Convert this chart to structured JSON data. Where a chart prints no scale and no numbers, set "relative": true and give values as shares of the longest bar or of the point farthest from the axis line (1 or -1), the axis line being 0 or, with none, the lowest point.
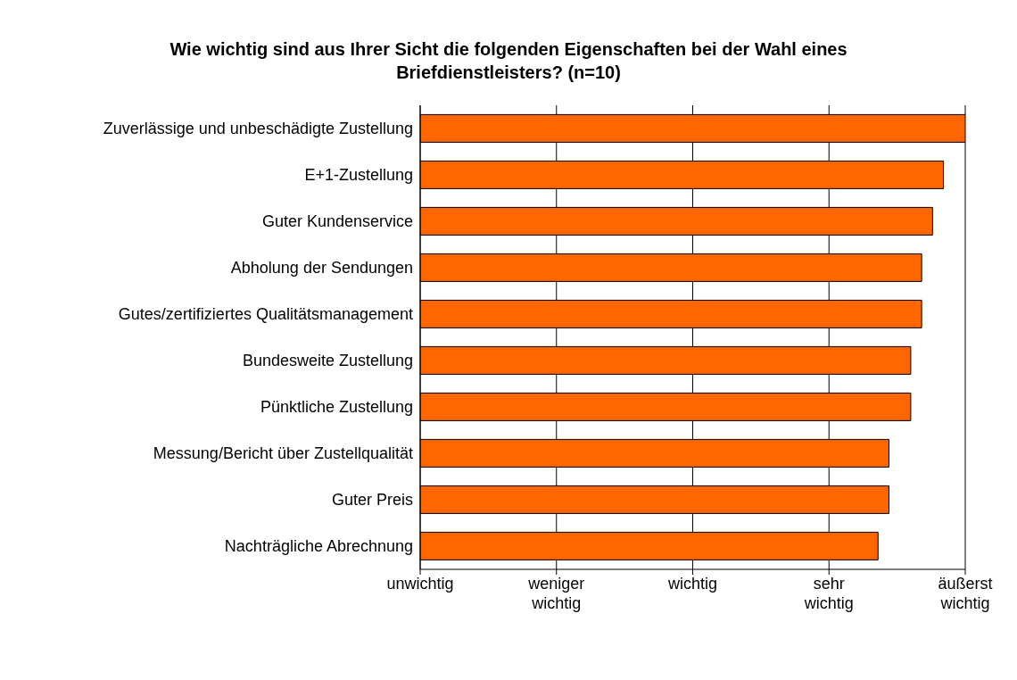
{
  "chart_data": {
    "type": "bar",
    "orientation": "horizontal",
    "title": "Wie wichtig sind aus Ihrer Sicht die folgenden Eigenschaften bei der Wahl eines Briefdienstleisters? (n=10)",
    "categories": [
      "Zuverlässige und unbeschädigte Zustellung",
      "E+1-Zustellung",
      "Guter Kundenservice",
      "Abholung der Sendungen",
      "Gutes/zertifiziertes Qualitätsmanagement",
      "Bundesweite Zustellung",
      "Pünktliche Zustellung",
      "Messung/Bericht über Zustellqualität",
      "Guter Preis",
      "Nachträgliche Abrechnung"
    ],
    "values": [
      1,
      0.96,
      0.94,
      0.92,
      0.92,
      0.9,
      0.9,
      0.86,
      0.86,
      0.84
    ],
    "relative": true,
    "color": "#ff6600",
    "annotations": [
      "unwichtig",
      "weniger wichtig",
      "wichtig",
      "sehr wichtig",
      "äußerst wichtig"
    ],
    "grid": "x"
  }
}
